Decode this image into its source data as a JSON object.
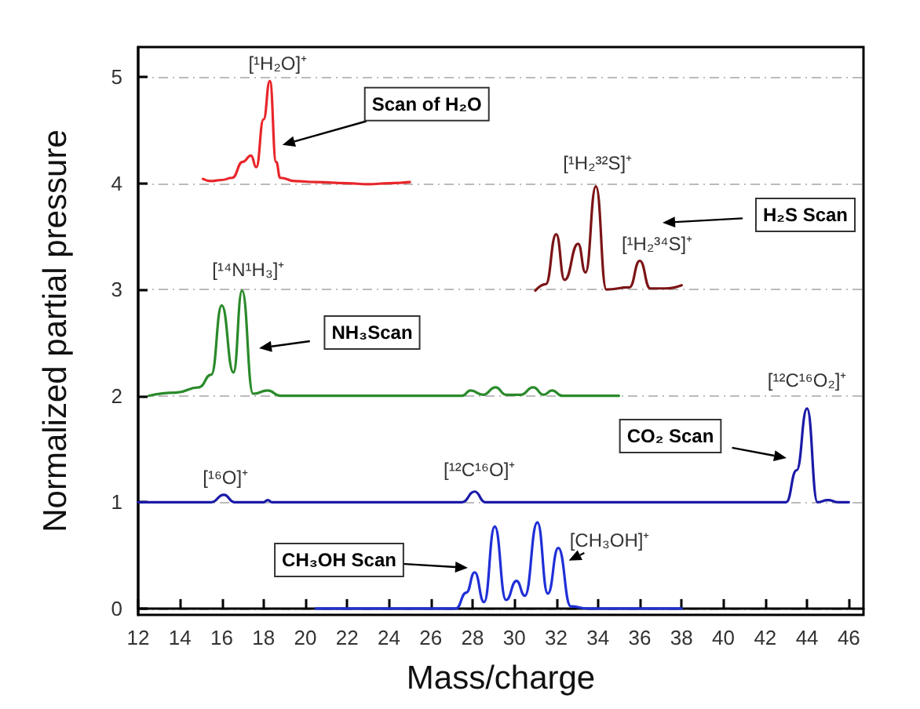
{
  "chart_data": {
    "type": "line",
    "xlabel": "Mass/charge",
    "ylabel": "Normalized partial pressure",
    "xlim": [
      12,
      46.7
    ],
    "ylim": [
      -0.06,
      5.28
    ],
    "xticks": [
      12,
      14,
      16,
      18,
      20,
      22,
      24,
      26,
      28,
      30,
      32,
      34,
      36,
      38,
      40,
      42,
      44,
      46
    ],
    "yticks": [
      0,
      1,
      2,
      3,
      4,
      5
    ],
    "grid": "y",
    "marker": "none",
    "line_style": "solid",
    "series": [
      {
        "color": "#e8262a",
        "x": [
          15.1,
          15.5,
          16.0,
          16.5,
          17.0,
          17.4,
          17.65,
          18.0,
          18.3,
          18.6,
          18.8,
          19.5,
          20.5,
          22,
          23,
          24,
          25.0
        ],
        "values": [
          4.04,
          4.02,
          4.03,
          4.05,
          4.2,
          4.26,
          4.15,
          4.6,
          4.96,
          4.2,
          4.05,
          4.02,
          4.01,
          4.0,
          3.99,
          4.0,
          4.01
        ]
      },
      {
        "color": "#7b1416",
        "x": [
          31.0,
          31.5,
          32.0,
          32.4,
          33.05,
          33.4,
          33.9,
          34.4,
          35.5,
          36.0,
          36.5,
          37.2,
          38.0
        ],
        "values": [
          2.99,
          3.05,
          3.52,
          3.09,
          3.43,
          3.16,
          3.97,
          3.0,
          3.02,
          3.27,
          3.01,
          3.01,
          3.04
        ]
      },
      {
        "color": "#2a8a2a",
        "x": [
          12.5,
          13.8,
          14.9,
          15.5,
          16.0,
          16.56,
          16.97,
          17.5,
          18.2,
          18.8,
          27.5,
          27.9,
          28.5,
          29.1,
          29.6,
          30.3,
          30.9,
          31.4,
          31.8,
          32.3,
          35.0
        ],
        "values": [
          2.0,
          2.03,
          2.08,
          2.2,
          2.85,
          2.22,
          2.99,
          2.02,
          2.05,
          2.0,
          2.0,
          2.05,
          2.01,
          2.08,
          2.01,
          2.01,
          2.08,
          2.01,
          2.05,
          2.0,
          2.0
        ]
      },
      {
        "color": "#1a1aa8",
        "x": [
          12,
          15.5,
          16.1,
          16.6,
          18.0,
          18.2,
          18.4,
          27.5,
          28.1,
          28.6,
          43.0,
          43.5,
          44.0,
          44.5,
          45.0,
          45.5,
          46.0
        ],
        "values": [
          1.0,
          1.0,
          1.07,
          1.0,
          1.0,
          1.02,
          1.0,
          1.0,
          1.1,
          1.0,
          1.0,
          1.3,
          1.88,
          1.0,
          1.02,
          1.0,
          1.0
        ]
      },
      {
        "color": "#1f2fd6",
        "x": [
          20.5,
          27.2,
          27.7,
          28.1,
          28.55,
          29.06,
          29.6,
          30.1,
          30.5,
          31.1,
          31.6,
          32.1,
          32.7,
          33.5,
          38.0
        ],
        "values": [
          0.0,
          0.0,
          0.15,
          0.34,
          0.06,
          0.77,
          0.08,
          0.26,
          0.12,
          0.81,
          0.14,
          0.57,
          0.02,
          0.0,
          0.0
        ]
      }
    ],
    "annotations": [
      {
        "text": "[¹H₂O]⁺",
        "x": 18.3,
        "y": 4.96
      },
      {
        "text": "Scan of H₂O",
        "x": 18.9,
        "y": 4.36
      },
      {
        "text": "[¹H₂³²S]⁺",
        "x": 33.9,
        "y": 3.97
      },
      {
        "text": "[¹H₂³⁴S]⁺",
        "x": 36.0,
        "y": 3.27
      },
      "H₂S Scan",
      {
        "text": "[¹⁴N¹H₃]⁺",
        "x": 16.97,
        "y": 2.99
      },
      "NH₃Scan",
      {
        "text": "[¹²C¹⁶O₂]⁺",
        "x": 44.0,
        "y": 1.88
      },
      "CO₂ Scan",
      {
        "text": "[¹⁶O]⁺",
        "x": 16.1,
        "y": 1.07
      },
      {
        "text": "[¹²C¹⁶O]⁺",
        "x": 28.1,
        "y": 1.1
      },
      "CH₃OH Scan",
      {
        "text": "[CH₃OH]⁺",
        "x": 32.6,
        "y": 0.45
      }
    ]
  }
}
